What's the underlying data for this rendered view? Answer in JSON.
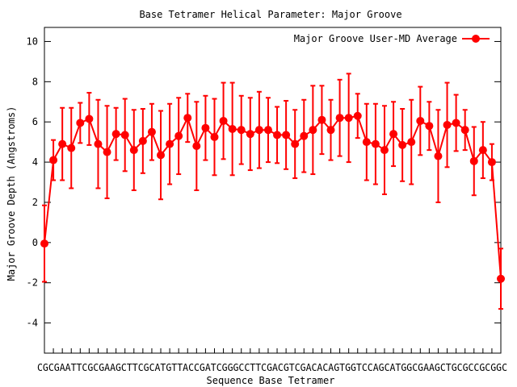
{
  "chart_data": {
    "type": "line",
    "title": "Base Tetramer Helical Parameter: Major Groove",
    "xlabel": "Sequence Base Tetramer",
    "ylabel": "Major Groove Depth (Angstroms)",
    "ylim": [
      -5.5,
      10.7
    ],
    "yticks": [
      -4,
      -2,
      0,
      2,
      4,
      6,
      8,
      10
    ],
    "xlim": [
      0,
      51
    ],
    "grid": false,
    "legend_position": "top-right",
    "x_tick_text": "CGCGAATTCGCGAAGCTTCGCATGTTACCGATCGGGCCTTCGACGTCGACACAGTGGTCCAGCATGGCGAAGCTGCGCCGCGGC",
    "series": [
      {
        "name": "Major Groove User-MD Average",
        "color": "#ff0000",
        "x": [
          0,
          1,
          2,
          3,
          4,
          5,
          6,
          7,
          8,
          9,
          10,
          11,
          12,
          13,
          14,
          15,
          16,
          17,
          18,
          19,
          20,
          21,
          22,
          23,
          24,
          25,
          26,
          27,
          28,
          29,
          30,
          31,
          32,
          33,
          34,
          35,
          36,
          37,
          38,
          39,
          40,
          41,
          42,
          43,
          44,
          45,
          46,
          47,
          48,
          49,
          50,
          51
        ],
        "values": [
          -0.05,
          4.1,
          4.9,
          4.7,
          5.95,
          6.15,
          4.9,
          4.5,
          5.4,
          5.35,
          4.6,
          5.05,
          5.5,
          4.35,
          4.9,
          5.3,
          6.2,
          4.8,
          5.7,
          5.25,
          6.05,
          5.65,
          5.6,
          5.4,
          5.6,
          5.6,
          5.35,
          5.35,
          4.9,
          5.3,
          5.6,
          6.1,
          5.6,
          6.2,
          6.2,
          6.3,
          5.0,
          4.9,
          4.6,
          5.4,
          4.85,
          5.0,
          6.05,
          5.8,
          4.3,
          5.85,
          5.95,
          5.6,
          4.05,
          4.6,
          4.0,
          -1.8
        ],
        "err": [
          1.9,
          1.0,
          1.8,
          2.0,
          1.0,
          1.3,
          2.2,
          2.3,
          1.3,
          1.8,
          2.0,
          1.6,
          1.4,
          2.2,
          2.0,
          1.9,
          1.2,
          2.2,
          1.6,
          1.9,
          1.9,
          2.3,
          1.7,
          1.8,
          1.9,
          1.6,
          1.4,
          1.7,
          1.7,
          1.8,
          2.2,
          1.7,
          1.5,
          1.9,
          2.2,
          1.1,
          1.9,
          2.0,
          2.2,
          1.6,
          1.8,
          2.1,
          1.7,
          1.2,
          2.3,
          2.1,
          1.4,
          1.0,
          1.7,
          1.4,
          0.9,
          1.5
        ]
      }
    ]
  }
}
